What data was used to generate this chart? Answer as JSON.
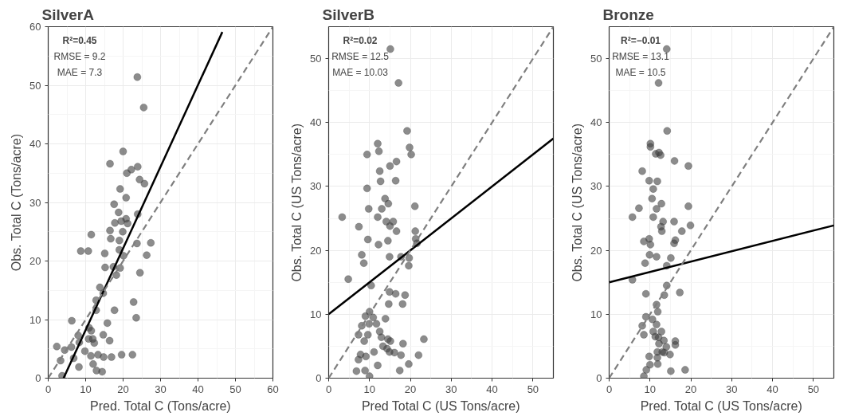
{
  "chart_data": [
    {
      "type": "scatter",
      "title": "SilverA",
      "xlabel": "Pred. Total C (Tons/acre)",
      "ylabel": "Obs. Total C (Tons/acre)",
      "xlim": [
        0,
        60
      ],
      "ylim": [
        0,
        60
      ],
      "xticks": [
        0,
        10,
        20,
        30,
        40,
        50,
        60
      ],
      "yticks": [
        0,
        10,
        20,
        30,
        40,
        50,
        60
      ],
      "grid": true,
      "marker": "circle",
      "annotations": [
        "R²=0.45",
        "RMSE = 9.2",
        "MAE = 7.3"
      ],
      "series": [
        {
          "type": "scatter",
          "color": "#404040",
          "x": [
            23.8,
            25.5,
            20.0,
            16.5,
            23.9,
            22.2,
            21.0,
            24.4,
            25.7,
            19.2,
            20.8,
            17.6,
            18.8,
            23.9,
            20.8,
            19.5,
            17.8,
            21.2,
            16.5,
            19.9,
            11.5,
            16.7,
            19.0,
            23.7,
            27.4,
            8.7,
            10.7,
            19.0,
            15.1,
            20.1,
            26.3,
            15.2,
            17.4,
            19.2,
            18.2,
            24.5,
            13.8,
            14.7,
            12.8,
            22.8,
            12.8,
            17.7,
            6.3,
            23.5,
            15.8,
            10.9,
            11.5,
            8.0,
            14.7,
            10.8,
            11.9,
            16.4,
            12.3,
            8.3,
            6.2,
            2.3,
            4.4,
            9.8,
            11.4,
            13.3,
            14.8,
            16.9,
            19.6,
            22.5,
            3.3,
            6.8,
            8.2,
            12.0,
            12.9,
            14.4,
            3.7
          ],
          "values": [
            51.4,
            46.2,
            38.7,
            36.6,
            36.1,
            35.6,
            35.0,
            33.9,
            33.2,
            32.3,
            30.8,
            29.7,
            28.3,
            28.0,
            27.2,
            26.8,
            26.5,
            26.4,
            25.2,
            25.0,
            24.5,
            23.8,
            23.5,
            23.0,
            23.1,
            21.7,
            21.7,
            21.9,
            21.3,
            20.9,
            21.0,
            18.9,
            19.0,
            18.8,
            17.6,
            18.0,
            15.5,
            14.5,
            13.3,
            13.0,
            11.6,
            11.6,
            9.8,
            10.3,
            9.4,
            8.6,
            8.1,
            7.3,
            7.4,
            6.7,
            6.7,
            6.4,
            6.0,
            6.1,
            5.3,
            5.4,
            4.8,
            4.6,
            3.8,
            4.0,
            3.6,
            3.6,
            4.0,
            4.0,
            3.0,
            3.4,
            1.9,
            2.4,
            1.3,
            1.1,
            0.4
          ]
        },
        {
          "type": "line",
          "color": "#000000",
          "marker": "none",
          "line_style": "solid",
          "x": [
            4.1,
            46.5
          ],
          "values": [
            0,
            59.1
          ]
        },
        {
          "type": "line",
          "color": "#7f7f7f",
          "marker": "none",
          "line_style": "dashed",
          "x": [
            0,
            60
          ],
          "values": [
            0,
            60
          ]
        }
      ]
    },
    {
      "type": "scatter",
      "title": "SilverB",
      "xlabel": "Pred Total C (US Tons/acre)",
      "ylabel": "Obs. Total C (US Tons/acre)",
      "xlim": [
        0,
        55
      ],
      "ylim": [
        0,
        55
      ],
      "xticks": [
        0,
        10,
        20,
        30,
        40,
        50
      ],
      "yticks": [
        0,
        10,
        20,
        30,
        40,
        50
      ],
      "grid": true,
      "marker": "circle",
      "annotations": [
        "R²=0.02",
        "RMSE = 12.5",
        "MAE = 10.03"
      ],
      "series": [
        {
          "type": "scatter",
          "color": "#404040",
          "x": [
            15.1,
            17.1,
            19.2,
            12.0,
            12.3,
            19.8,
            20.2,
            9.4,
            16.6,
            15.0,
            12.5,
            12.7,
            16.4,
            9.4,
            13.8,
            14.6,
            21.1,
            9.8,
            13.0,
            3.3,
            12.0,
            14.1,
            15.8,
            15.0,
            16.6,
            7.4,
            21.2,
            21.3,
            9.6,
            14.5,
            21.6,
            12.2,
            8.1,
            14.9,
            17.7,
            19.7,
            19.6,
            8.6,
            4.8,
            10.4,
            14.9,
            16.4,
            18.7,
            14.7,
            18.1,
            10.0,
            9.0,
            10.9,
            13.9,
            9.9,
            11.7,
            8.1,
            12.5,
            7.3,
            9.6,
            12.9,
            14.5,
            8.7,
            15.1,
            23.3,
            18.2,
            13.3,
            14.3,
            14.9,
            16.1,
            11.1,
            7.8,
            9.1,
            7.3,
            17.7,
            22.0,
            12.0,
            19.6,
            6.8,
            8.9,
            17.4,
            10.0
          ],
          "values": [
            51.5,
            46.2,
            38.7,
            36.7,
            35.5,
            36.1,
            35.0,
            35.0,
            33.9,
            33.2,
            32.4,
            30.8,
            30.9,
            29.7,
            28.1,
            27.3,
            26.9,
            26.5,
            26.5,
            25.2,
            25.2,
            24.5,
            24.5,
            23.8,
            23.0,
            23.7,
            23.0,
            21.8,
            21.7,
            21.5,
            21.1,
            20.9,
            19.3,
            19.0,
            19.0,
            18.8,
            17.6,
            18.0,
            15.5,
            14.5,
            13.5,
            13.2,
            13.0,
            11.6,
            11.6,
            10.4,
            9.7,
            9.5,
            9.3,
            8.5,
            8.5,
            8.2,
            7.3,
            6.8,
            6.8,
            6.4,
            6.1,
            5.8,
            5.8,
            6.1,
            5.4,
            5.0,
            4.6,
            4.1,
            4.0,
            4.1,
            3.7,
            3.4,
            2.9,
            3.6,
            3.6,
            2.0,
            2.2,
            1.1,
            1.2,
            1.2,
            0.3
          ]
        },
        {
          "type": "line",
          "color": "#000000",
          "marker": "none",
          "line_style": "solid",
          "x": [
            0,
            55
          ],
          "values": [
            10.0,
            37.5
          ]
        },
        {
          "type": "line",
          "color": "#7f7f7f",
          "marker": "none",
          "line_style": "dashed",
          "x": [
            0,
            55
          ],
          "values": [
            0,
            55
          ]
        }
      ]
    },
    {
      "type": "scatter",
      "title": "Bronze",
      "xlabel": "Pred. Total C (US Tons/acre)",
      "ylabel": "Obs. Total C (US Tons/acre)",
      "xlim": [
        0,
        55
      ],
      "ylim": [
        0,
        55
      ],
      "xticks": [
        0,
        10,
        20,
        30,
        40,
        50
      ],
      "yticks": [
        0,
        10,
        20,
        30,
        40,
        50
      ],
      "grid": true,
      "marker": "circle",
      "annotations": [
        "R²=−0.01",
        "RMSE = 13.1",
        "MAE = 10.5"
      ],
      "series": [
        {
          "type": "scatter",
          "color": "#404040",
          "x": [
            14.1,
            12.1,
            14.2,
            10.1,
            10.1,
            11.4,
            12.2,
            12.6,
            16.0,
            19.4,
            8.1,
            9.8,
            11.8,
            10.8,
            10.5,
            12.8,
            7.3,
            11.6,
            19.4,
            5.7,
            10.8,
            13.2,
            15.9,
            12.7,
            12.9,
            17.8,
            19.9,
            8.5,
            9.8,
            10.1,
            16.2,
            15.9,
            9.9,
            11.6,
            15.1,
            8.8,
            14.1,
            5.7,
            14.1,
            13.5,
            9.0,
            17.3,
            11.6,
            11.9,
            9.0,
            10.6,
            11.6,
            8.1,
            10.8,
            12.8,
            8.5,
            11.3,
            12.1,
            13.4,
            16.2,
            16.2,
            12.2,
            14.0,
            13.0,
            11.8,
            13.5,
            14.9,
            9.8,
            11.8,
            10.0,
            11.9,
            9.1,
            15.1,
            18.6,
            8.5
          ],
          "values": [
            51.5,
            46.2,
            38.7,
            36.7,
            36.2,
            35.1,
            35.3,
            34.9,
            34.0,
            33.2,
            32.4,
            30.9,
            30.8,
            29.6,
            28.1,
            27.3,
            26.6,
            26.5,
            26.9,
            25.2,
            25.2,
            24.5,
            24.5,
            23.7,
            23.0,
            23.0,
            23.9,
            21.4,
            21.8,
            20.9,
            21.6,
            21.1,
            19.3,
            19.0,
            18.8,
            18.0,
            17.6,
            15.4,
            14.5,
            13.0,
            13.2,
            13.4,
            11.5,
            10.4,
            9.6,
            9.2,
            8.4,
            8.2,
            7.3,
            7.3,
            6.8,
            6.5,
            6.4,
            5.9,
            5.8,
            5.2,
            5.4,
            4.9,
            4.1,
            4.1,
            4.0,
            3.7,
            3.4,
            3.2,
            2.1,
            2.2,
            1.3,
            1.1,
            1.3,
            0.3
          ]
        },
        {
          "type": "line",
          "color": "#000000",
          "marker": "none",
          "line_style": "solid",
          "x": [
            0,
            55
          ],
          "values": [
            15.0,
            23.9
          ]
        },
        {
          "type": "line",
          "color": "#7f7f7f",
          "marker": "none",
          "line_style": "dashed",
          "x": [
            0,
            55
          ],
          "values": [
            0,
            55
          ]
        }
      ]
    }
  ]
}
